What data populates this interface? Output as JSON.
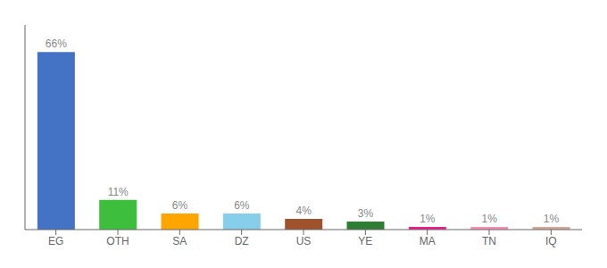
{
  "chart_data": {
    "type": "bar",
    "categories": [
      "EG",
      "OTH",
      "SA",
      "DZ",
      "US",
      "YE",
      "MA",
      "TN",
      "IQ"
    ],
    "values": [
      66,
      11,
      6,
      6,
      4,
      3,
      1,
      1,
      1
    ],
    "value_labels": [
      "66%",
      "11%",
      "6%",
      "6%",
      "4%",
      "3%",
      "1%",
      "1%",
      "1%"
    ],
    "colors": [
      "#4472C4",
      "#3DBE3D",
      "#FFA500",
      "#87CEEB",
      "#A0522D",
      "#2E7D32",
      "#E91E8C",
      "#F48FB1",
      "#D2A898"
    ],
    "ylim": [
      0,
      76
    ],
    "data_labels": true,
    "tick_labels": "x",
    "grid": false
  }
}
